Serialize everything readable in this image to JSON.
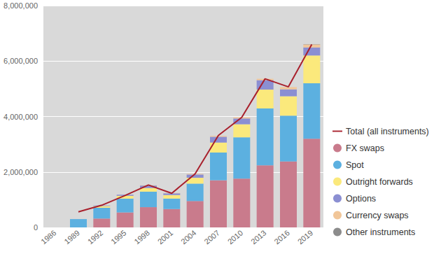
{
  "chart_data": {
    "type": "bar",
    "stacked": true,
    "grid": true,
    "legend": "right",
    "categories": [
      "1986",
      "1989",
      "1992",
      "1995",
      "1998",
      "2001",
      "2004",
      "2007",
      "2010",
      "2013",
      "2016",
      "2019"
    ],
    "ylim": [
      0,
      8000000
    ],
    "yticks": [
      0,
      {
        "value": 2000000,
        "label": "2,000,000"
      },
      {
        "value": 4000000,
        "label": "4,000,000"
      },
      {
        "value": 6000000,
        "label": "6,000,000"
      },
      {
        "value": 8000000,
        "label": "8,000,000"
      }
    ],
    "series": [
      {
        "name": "Total (all instruments)",
        "type": "line",
        "color": "#a8202c",
        "values": [
          null,
          560000,
          800000,
          1150000,
          1530000,
          1230000,
          1930000,
          3320000,
          3970000,
          5360000,
          5070000,
          6600000
        ]
      },
      {
        "name": "FX swaps",
        "type": "bar",
        "color": "#c97b8c",
        "values": [
          null,
          null,
          320000,
          540000,
          730000,
          660000,
          950000,
          1700000,
          1760000,
          2240000,
          2380000,
          3200000
        ]
      },
      {
        "name": "Spot",
        "type": "bar",
        "color": "#5cb0e0",
        "values": [
          null,
          300000,
          390000,
          500000,
          560000,
          380000,
          630000,
          1000000,
          1490000,
          2050000,
          1650000,
          2000000
        ]
      },
      {
        "name": "Outright forwards",
        "type": "bar",
        "color": "#fbe97c",
        "values": [
          null,
          null,
          60000,
          100000,
          130000,
          130000,
          210000,
          360000,
          470000,
          680000,
          700000,
          1000000
        ]
      },
      {
        "name": "Options",
        "type": "bar",
        "color": "#8b8fd2",
        "values": [
          null,
          null,
          20000,
          40000,
          90000,
          60000,
          120000,
          210000,
          210000,
          340000,
          250000,
          290000
        ]
      },
      {
        "name": "Currency swaps",
        "type": "bar",
        "color": "#f1c699",
        "values": [
          null,
          null,
          null,
          null,
          10000,
          10000,
          20000,
          30000,
          40000,
          50000,
          80000,
          110000
        ]
      },
      {
        "name": "Other instruments",
        "type": "bar",
        "color": "#8c8c8c",
        "values": [
          null,
          null,
          null,
          null,
          null,
          null,
          null,
          null,
          null,
          null,
          null,
          10000
        ]
      }
    ]
  }
}
